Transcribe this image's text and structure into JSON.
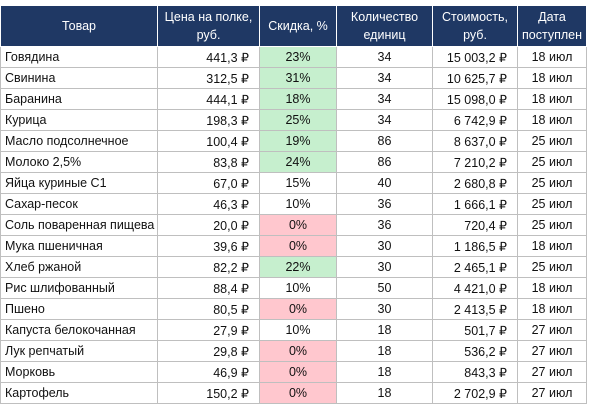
{
  "table": {
    "header": [
      "Товар",
      "Цена на полке, руб.",
      "Скидка, %",
      "Количество единиц",
      "Стоимость, руб.",
      "Дата поступлен"
    ],
    "rows": [
      [
        "Говядина",
        "441,3 ₽",
        "23%",
        "34",
        "15 003,2 ₽",
        "18 июл"
      ],
      [
        "Свинина",
        "312,5 ₽",
        "31%",
        "34",
        "10 625,7 ₽",
        "18 июл"
      ],
      [
        "Баранина",
        "444,1 ₽",
        "18%",
        "34",
        "15 098,0 ₽",
        "18 июл"
      ],
      [
        "Курица",
        "198,3 ₽",
        "25%",
        "34",
        "6 742,9 ₽",
        "18 июл"
      ],
      [
        "Масло подсолнечное",
        "100,4 ₽",
        "19%",
        "86",
        "8 637,0 ₽",
        "25 июл"
      ],
      [
        "Молоко 2,5%",
        "83,8 ₽",
        "24%",
        "86",
        "7 210,2 ₽",
        "25 июл"
      ],
      [
        "Яйца куриные С1",
        "67,0 ₽",
        "15%",
        "40",
        "2 680,8 ₽",
        "25 июл"
      ],
      [
        "Сахар-песок",
        "46,3 ₽",
        "10%",
        "36",
        "1 666,1 ₽",
        "25 июл"
      ],
      [
        "Соль поваренная пищева",
        "20,0 ₽",
        "0%",
        "36",
        "720,4 ₽",
        "25 июл"
      ],
      [
        "Мука пшеничная",
        "39,6 ₽",
        "0%",
        "30",
        "1 186,5 ₽",
        "18 июл"
      ],
      [
        "Хлеб ржаной",
        "82,2 ₽",
        "22%",
        "30",
        "2 465,1 ₽",
        "25 июл"
      ],
      [
        "Рис шлифованный",
        "88,4 ₽",
        "10%",
        "50",
        "4 421,0 ₽",
        "18 июл"
      ],
      [
        "Пшено",
        "80,5 ₽",
        "0%",
        "30",
        "2 413,5 ₽",
        "18 июл"
      ],
      [
        "Капуста белокочанная",
        "27,9 ₽",
        "10%",
        "18",
        "501,7 ₽",
        "27 июл"
      ],
      [
        "Лук репчатый",
        "29,8 ₽",
        "0%",
        "18",
        "536,2 ₽",
        "27 июл"
      ],
      [
        "Морковь",
        "46,9 ₽",
        "0%",
        "18",
        "843,3 ₽",
        "27 июл"
      ],
      [
        "Картофель",
        "150,2 ₽",
        "0%",
        "18",
        "2 702,9 ₽",
        "27 июл"
      ]
    ],
    "discount_fill": [
      "#c6efce",
      "#c6efce",
      "#c6efce",
      "#c6efce",
      "#c6efce",
      "#c6efce",
      "#ffffff",
      "#ffffff",
      "#ffc7ce",
      "#ffc7ce",
      "#c6efce",
      "#ffffff",
      "#ffc7ce",
      "#ffffff",
      "#ffc7ce",
      "#ffc7ce",
      "#ffc7ce"
    ],
    "header_color": "#1f3864"
  }
}
